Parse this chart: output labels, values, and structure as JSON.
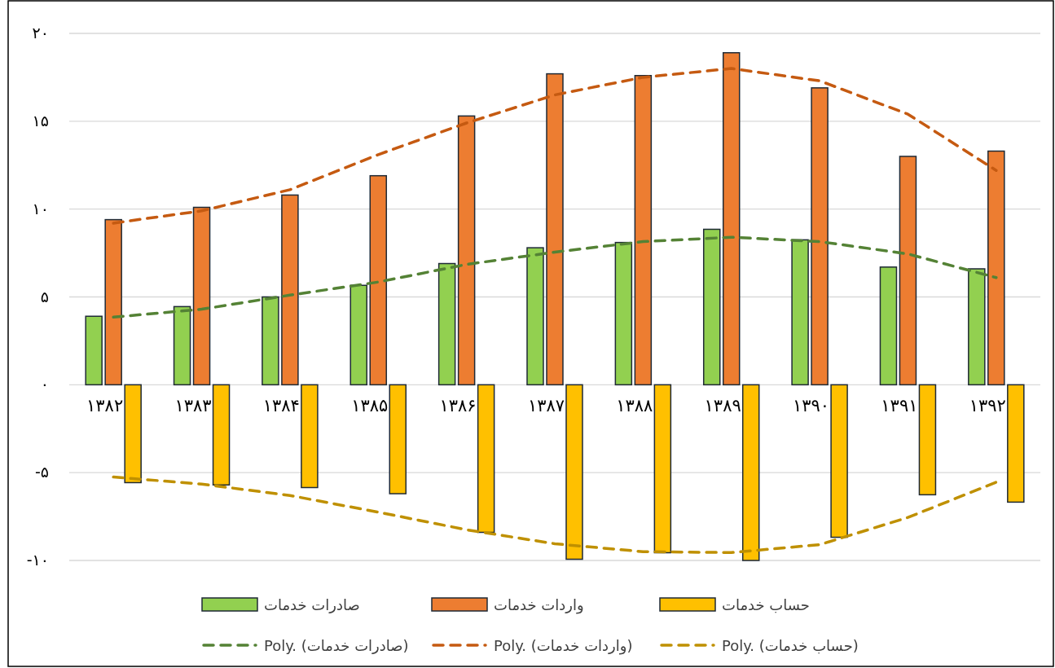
{
  "chart_data": {
    "type": "bar",
    "categories": [
      "۱۳۸۲",
      "۱۳۸۳",
      "۱۳۸۴",
      "۱۳۸۵",
      "۱۳۸۶",
      "۱۳۸۷",
      "۱۳۸۸",
      "۱۳۸۹",
      "۱۳۹۰",
      "۱۳۹۱",
      "۱۳۹۲"
    ],
    "series": [
      {
        "name": "صادرات خدمات",
        "color": "#92d050",
        "values": [
          3.9,
          4.45,
          5.0,
          5.66,
          6.9,
          7.8,
          8.1,
          8.85,
          8.25,
          6.7,
          6.6
        ]
      },
      {
        "name": "واردات خدمات",
        "color": "#ed7d31",
        "values": [
          9.4,
          10.1,
          10.8,
          11.9,
          15.3,
          17.7,
          17.6,
          18.9,
          16.9,
          13.0,
          13.3
        ]
      },
      {
        "name": "حساب خدمات",
        "color": "#ffc000",
        "values": [
          -5.57,
          -5.7,
          -5.85,
          -6.2,
          -8.4,
          -9.93,
          -9.56,
          -10.0,
          -8.68,
          -6.26,
          -6.68
        ]
      },
      {
        "name": "Poly. (صادرات خدمات)",
        "type": "line",
        "line_style": "dashed",
        "color": "#548235",
        "values": [
          3.85,
          4.3,
          5.1,
          5.85,
          6.85,
          7.55,
          8.15,
          8.4,
          8.15,
          7.45,
          6.1
        ]
      },
      {
        "name": "Poly. (واردات خدمات)",
        "type": "line",
        "line_style": "dashed",
        "color": "#c55a11",
        "values": [
          9.2,
          9.9,
          11.1,
          13.1,
          14.9,
          16.5,
          17.5,
          18.0,
          17.3,
          15.4,
          12.2
        ]
      },
      {
        "name": "Poly. (حساب خدمات)",
        "type": "line",
        "line_style": "dashed",
        "color": "#bf9000",
        "values": [
          -5.25,
          -5.65,
          -6.3,
          -7.25,
          -8.25,
          -9.05,
          -9.5,
          -9.55,
          -9.1,
          -7.55,
          -5.55
        ]
      }
    ],
    "ylim": [
      -10,
      20
    ],
    "yticks": [
      {
        "value": -10,
        "label": "-۱۰"
      },
      {
        "value": -5,
        "label": "-۵"
      },
      {
        "value": 0,
        "label": "۰"
      },
      {
        "value": 5,
        "label": "۵"
      },
      {
        "value": 10,
        "label": "۱۰"
      },
      {
        "value": 15,
        "label": "۱۵"
      },
      {
        "value": 20,
        "label": "۲۰"
      }
    ],
    "grid": "y",
    "legend": "bottom"
  }
}
